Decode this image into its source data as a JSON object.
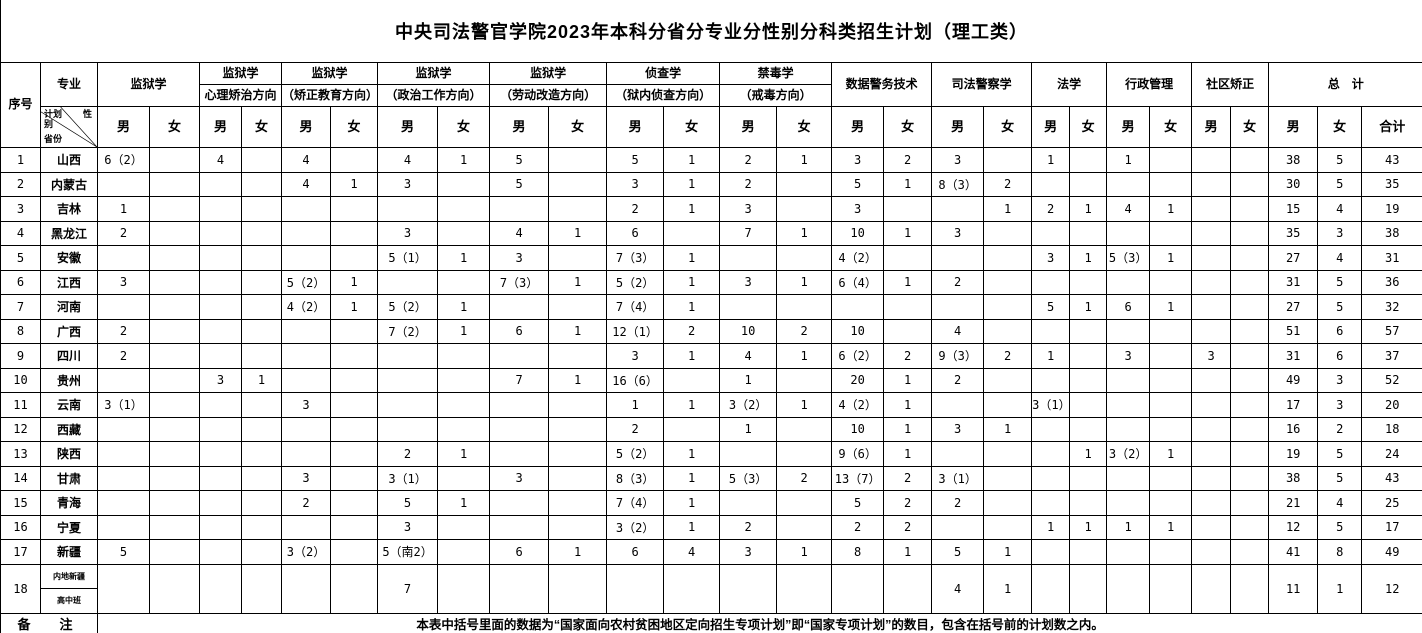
{
  "title": "中央司法警官学院2023年本科分省分专业分性别分科类招生计划（理工类）",
  "header": {
    "seq": "序号",
    "major": "专业",
    "corner": {
      "plan": "计划",
      "gender": "性别",
      "province": "省份"
    },
    "groups": [
      {
        "title": "监狱学",
        "subtitle": "",
        "cols": [
          "男",
          "女"
        ]
      },
      {
        "title": "监狱学",
        "subtitle": "心理矫治方向",
        "cols": [
          "男",
          "女"
        ]
      },
      {
        "title": "监狱学",
        "subtitle": "（矫正教育方向）",
        "cols": [
          "男",
          "女"
        ]
      },
      {
        "title": "监狱学",
        "subtitle": "（政治工作方向）",
        "cols": [
          "男",
          "女"
        ]
      },
      {
        "title": "监狱学",
        "subtitle": "（劳动改造方向）",
        "cols": [
          "男",
          "女"
        ]
      },
      {
        "title": "侦查学",
        "subtitle": "（狱内侦查方向）",
        "cols": [
          "男",
          "女"
        ]
      },
      {
        "title": "禁毒学",
        "subtitle": "（戒毒方向）",
        "cols": [
          "男",
          "女"
        ]
      },
      {
        "title": "数据警务技术",
        "subtitle": "",
        "cols": [
          "男",
          "女"
        ]
      },
      {
        "title": "司法警察学",
        "subtitle": "",
        "cols": [
          "男",
          "女"
        ]
      },
      {
        "title": "法学",
        "subtitle": "",
        "cols": [
          "男",
          "女"
        ]
      },
      {
        "title": "行政管理",
        "subtitle": "",
        "cols": [
          "男",
          "女"
        ]
      },
      {
        "title": "社区矫正",
        "subtitle": "",
        "cols": [
          "男",
          "女"
        ]
      },
      {
        "title": "总　计",
        "subtitle": "",
        "cols": [
          "男",
          "女",
          "合计"
        ]
      }
    ]
  },
  "rows": [
    {
      "no": "1",
      "province": "山西",
      "cells": [
        "6（2）",
        "",
        "4",
        "",
        "4",
        "",
        "4",
        "1",
        "5",
        "",
        "5",
        "1",
        "2",
        "1",
        "3",
        "2",
        "3",
        "",
        "1",
        "",
        "1",
        "",
        "",
        "",
        "38",
        "5",
        "43"
      ]
    },
    {
      "no": "2",
      "province": "内蒙古",
      "cells": [
        "",
        "",
        "",
        "",
        "4",
        "1",
        "3",
        "",
        "5",
        "",
        "3",
        "1",
        "2",
        "",
        "5",
        "1",
        "8（3）",
        "2",
        "",
        "",
        "",
        "",
        "",
        "",
        "30",
        "5",
        "35"
      ]
    },
    {
      "no": "3",
      "province": "吉林",
      "cells": [
        "1",
        "",
        "",
        "",
        "",
        "",
        "",
        "",
        "",
        "",
        "2",
        "1",
        "3",
        "",
        "3",
        "",
        "",
        "1",
        "2",
        "1",
        "4",
        "1",
        "",
        "",
        "15",
        "4",
        "19"
      ]
    },
    {
      "no": "4",
      "province": "黑龙江",
      "cells": [
        "2",
        "",
        "",
        "",
        "",
        "",
        "3",
        "",
        "4",
        "1",
        "6",
        "",
        "7",
        "1",
        "10",
        "1",
        "3",
        "",
        "",
        "",
        "",
        "",
        "",
        "",
        "35",
        "3",
        "38"
      ]
    },
    {
      "no": "5",
      "province": "安徽",
      "cells": [
        "",
        "",
        "",
        "",
        "",
        "",
        "5（1）",
        "1",
        "3",
        "",
        "7（3）",
        "1",
        "",
        "",
        "4（2）",
        "",
        "",
        "",
        "3",
        "1",
        "5（3）",
        "1",
        "",
        "",
        "27",
        "4",
        "31"
      ]
    },
    {
      "no": "6",
      "province": "江西",
      "cells": [
        "3",
        "",
        "",
        "",
        "5（2）",
        "1",
        "",
        "",
        "7（3）",
        "1",
        "5（2）",
        "1",
        "3",
        "1",
        "6（4）",
        "1",
        "2",
        "",
        "",
        "",
        "",
        "",
        "",
        "",
        "31",
        "5",
        "36"
      ]
    },
    {
      "no": "7",
      "province": "河南",
      "cells": [
        "",
        "",
        "",
        "",
        "4（2）",
        "1",
        "5（2）",
        "1",
        "",
        "",
        "7（4）",
        "1",
        "",
        "",
        "",
        "",
        "",
        "",
        "5",
        "1",
        "6",
        "1",
        "",
        "",
        "27",
        "5",
        "32"
      ]
    },
    {
      "no": "8",
      "province": "广西",
      "cells": [
        "2",
        "",
        "",
        "",
        "",
        "",
        "7（2）",
        "1",
        "6",
        "1",
        "12（1）",
        "2",
        "10",
        "2",
        "10",
        "",
        "4",
        "",
        "",
        "",
        "",
        "",
        "",
        "",
        "51",
        "6",
        "57"
      ]
    },
    {
      "no": "9",
      "province": "四川",
      "cells": [
        "2",
        "",
        "",
        "",
        "",
        "",
        "",
        "",
        "",
        "",
        "3",
        "1",
        "4",
        "1",
        "6（2）",
        "2",
        "9（3）",
        "2",
        "1",
        "",
        "3",
        "",
        "3",
        "",
        "31",
        "6",
        "37"
      ]
    },
    {
      "no": "10",
      "province": "贵州",
      "cells": [
        "",
        "",
        "3",
        "1",
        "",
        "",
        "",
        "",
        "7",
        "1",
        "16（6）",
        "",
        "1",
        "",
        "20",
        "1",
        "2",
        "",
        "",
        "",
        "",
        "",
        "",
        "",
        "49",
        "3",
        "52"
      ]
    },
    {
      "no": "11",
      "province": "云南",
      "cells": [
        "3（1）",
        "",
        "",
        "",
        "3",
        "",
        "",
        "",
        "",
        "",
        "1",
        "1",
        "3（2）",
        "1",
        "4（2）",
        "1",
        "",
        "",
        "3（1）",
        "",
        "",
        "",
        "",
        "",
        "17",
        "3",
        "20"
      ]
    },
    {
      "no": "12",
      "province": "西藏",
      "cells": [
        "",
        "",
        "",
        "",
        "",
        "",
        "",
        "",
        "",
        "",
        "2",
        "",
        "1",
        "",
        "10",
        "1",
        "3",
        "1",
        "",
        "",
        "",
        "",
        "",
        "",
        "16",
        "2",
        "18"
      ]
    },
    {
      "no": "13",
      "province": "陕西",
      "cells": [
        "",
        "",
        "",
        "",
        "",
        "",
        "2",
        "1",
        "",
        "",
        "5（2）",
        "1",
        "",
        "",
        "9（6）",
        "1",
        "",
        "",
        "",
        "1",
        "3（2）",
        "1",
        "",
        "",
        "19",
        "5",
        "24"
      ]
    },
    {
      "no": "14",
      "province": "甘肃",
      "cells": [
        "",
        "",
        "",
        "",
        "3",
        "",
        "3（1）",
        "",
        "3",
        "",
        "8（3）",
        "1",
        "5（3）",
        "2",
        "13（7）",
        "2",
        "3（1）",
        "",
        "",
        "",
        "",
        "",
        "",
        "",
        "38",
        "5",
        "43"
      ]
    },
    {
      "no": "15",
      "province": "青海",
      "cells": [
        "",
        "",
        "",
        "",
        "2",
        "",
        "5",
        "1",
        "",
        "",
        "7（4）",
        "1",
        "",
        "",
        "5",
        "2",
        "2",
        "",
        "",
        "",
        "",
        "",
        "",
        "",
        "21",
        "4",
        "25"
      ]
    },
    {
      "no": "16",
      "province": "宁夏",
      "cells": [
        "",
        "",
        "",
        "",
        "",
        "",
        "3",
        "",
        "",
        "",
        "3（2）",
        "1",
        "2",
        "",
        "2",
        "2",
        "",
        "",
        "1",
        "1",
        "1",
        "1",
        "",
        "",
        "12",
        "5",
        "17"
      ]
    },
    {
      "no": "17",
      "province": "新疆",
      "cells": [
        "5",
        "",
        "",
        "",
        "3（2）",
        "",
        "5（南2）",
        "",
        "6",
        "1",
        "6",
        "4",
        "3",
        "1",
        "8",
        "1",
        "5",
        "1",
        "",
        "",
        "",
        "",
        "",
        "",
        "41",
        "8",
        "49"
      ]
    }
  ],
  "row18": {
    "no": "18",
    "labels": [
      "内地新疆",
      "高中班"
    ],
    "cells": [
      "",
      "",
      "",
      "",
      "",
      "",
      "7",
      "",
      "",
      "",
      "",
      "",
      "",
      "",
      "",
      "",
      "4",
      "1",
      "",
      "",
      "",
      "",
      "",
      "",
      "11",
      "1",
      "12"
    ]
  },
  "note": {
    "label": "备　注",
    "text": "本表中括号里面的数据为“国家面向农村贫困地区定向招生专项计划”即“国家专项计划”的数目，包含在括号前的计划数之内。"
  }
}
